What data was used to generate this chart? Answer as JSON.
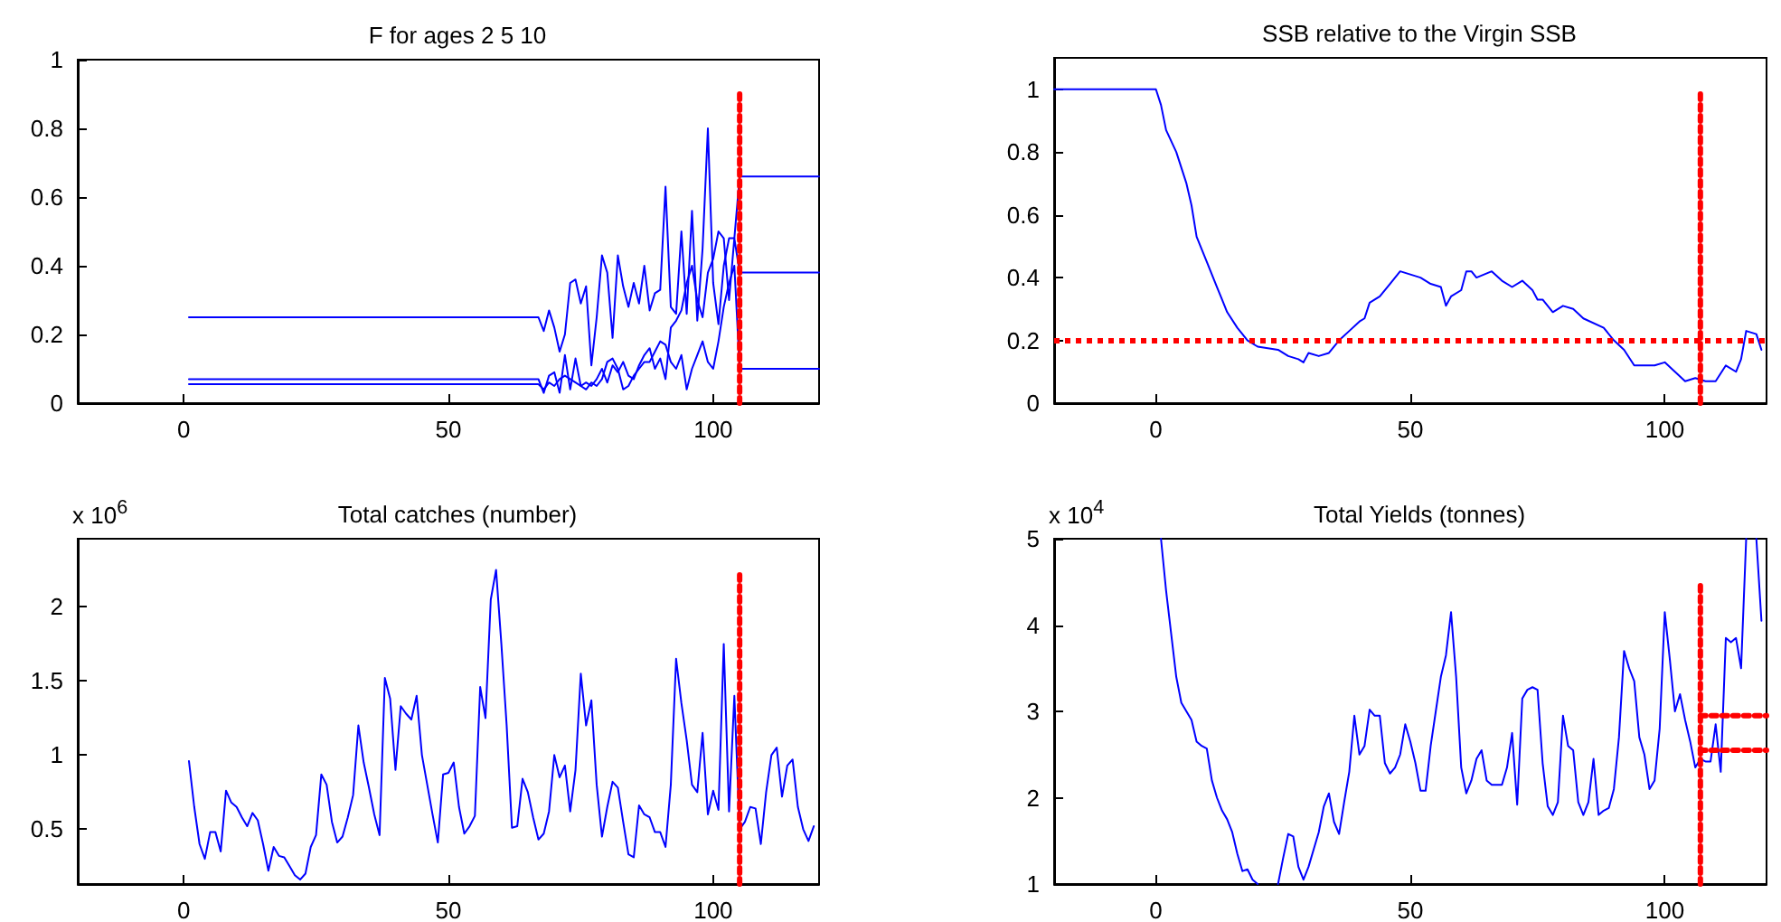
{
  "chart_data": [
    {
      "type": "line",
      "title": "F for ages 2 5 10",
      "xlim": [
        -20,
        120
      ],
      "xticks": [
        0,
        50,
        100
      ],
      "ylim": [
        0,
        1
      ],
      "yticks": [
        0,
        0.2,
        0.4,
        0.6,
        0.8,
        1
      ],
      "series": [
        {
          "color": "#0000ff",
          "x": [
            1,
            67,
            68,
            69,
            70,
            71,
            72,
            73,
            74,
            75,
            76,
            77,
            78,
            79,
            80,
            81,
            82,
            83,
            84,
            85,
            86,
            87,
            88,
            89,
            90,
            91,
            92,
            93,
            94,
            95,
            96,
            97,
            98,
            99,
            100,
            101,
            102,
            103,
            104,
            105,
            120
          ],
          "values": [
            0.25,
            0.25,
            0.21,
            0.27,
            0.22,
            0.15,
            0.2,
            0.35,
            0.36,
            0.29,
            0.34,
            0.11,
            0.25,
            0.43,
            0.38,
            0.19,
            0.43,
            0.34,
            0.28,
            0.35,
            0.29,
            0.4,
            0.27,
            0.32,
            0.33,
            0.63,
            0.28,
            0.26,
            0.5,
            0.26,
            0.56,
            0.24,
            0.45,
            0.8,
            0.35,
            0.23,
            0.4,
            0.48,
            0.48,
            0.66,
            0.66
          ]
        },
        {
          "color": "#0000ff",
          "x": [
            1,
            67,
            68,
            69,
            70,
            71,
            72,
            73,
            74,
            75,
            76,
            77,
            78,
            79,
            80,
            81,
            82,
            83,
            84,
            85,
            86,
            87,
            88,
            89,
            90,
            91,
            92,
            93,
            94,
            95,
            96,
            97,
            98,
            99,
            100,
            101,
            102,
            103,
            104,
            105,
            120
          ],
          "values": [
            0.07,
            0.07,
            0.03,
            0.08,
            0.09,
            0.03,
            0.14,
            0.04,
            0.13,
            0.05,
            0.06,
            0.05,
            0.07,
            0.1,
            0.06,
            0.11,
            0.09,
            0.12,
            0.08,
            0.07,
            0.11,
            0.14,
            0.16,
            0.1,
            0.13,
            0.07,
            0.22,
            0.24,
            0.27,
            0.35,
            0.4,
            0.3,
            0.25,
            0.38,
            0.42,
            0.5,
            0.48,
            0.3,
            0.48,
            0.38,
            0.38
          ]
        },
        {
          "color": "#0000ff",
          "x": [
            1,
            67,
            68,
            69,
            70,
            71,
            72,
            73,
            74,
            75,
            76,
            77,
            78,
            79,
            80,
            81,
            82,
            83,
            84,
            85,
            86,
            87,
            88,
            89,
            90,
            91,
            92,
            93,
            94,
            95,
            96,
            97,
            98,
            99,
            100,
            101,
            102,
            103,
            104,
            105,
            120
          ],
          "values": [
            0.055,
            0.055,
            0.04,
            0.06,
            0.05,
            0.07,
            0.08,
            0.07,
            0.06,
            0.05,
            0.04,
            0.06,
            0.05,
            0.07,
            0.12,
            0.13,
            0.1,
            0.04,
            0.05,
            0.08,
            0.1,
            0.12,
            0.12,
            0.15,
            0.18,
            0.17,
            0.12,
            0.1,
            0.14,
            0.04,
            0.1,
            0.14,
            0.18,
            0.12,
            0.1,
            0.18,
            0.28,
            0.35,
            0.4,
            0.1,
            0.1
          ]
        },
        {
          "color": "#ff0000",
          "line_style": "dotted",
          "x": [
            105,
            105
          ],
          "values": [
            0,
            0.9
          ]
        }
      ]
    },
    {
      "type": "line",
      "title": "SSB relative to the Virgin SSB",
      "xlim": [
        -20,
        120
      ],
      "xticks": [
        0,
        50,
        100
      ],
      "ylim": [
        0,
        1.1
      ],
      "yticks": [
        0,
        0.2,
        0.4,
        0.6,
        0.8,
        1
      ],
      "ref_lines": [
        {
          "axis": "y",
          "value": 0.2,
          "color": "#ff0000",
          "line_style": "dotted"
        }
      ],
      "series": [
        {
          "color": "#0000ff",
          "x": [
            -20,
            0,
            1,
            2,
            4,
            6,
            7,
            8,
            10,
            12,
            13,
            14,
            16,
            18,
            20,
            24,
            26,
            28,
            29,
            30,
            32,
            34,
            36,
            38,
            40,
            41,
            42,
            44,
            46,
            48,
            50,
            52,
            54,
            56,
            57,
            58,
            60,
            61,
            62,
            63,
            66,
            68,
            70,
            72,
            74,
            75,
            76,
            78,
            80,
            82,
            84,
            88,
            90,
            92,
            94,
            98,
            100,
            102,
            104,
            106,
            108,
            110,
            112,
            114,
            115,
            116,
            118,
            119
          ],
          "values": [
            1,
            1,
            0.95,
            0.87,
            0.8,
            0.7,
            0.63,
            0.53,
            0.45,
            0.37,
            0.33,
            0.29,
            0.24,
            0.2,
            0.18,
            0.17,
            0.15,
            0.14,
            0.13,
            0.16,
            0.15,
            0.16,
            0.2,
            0.23,
            0.26,
            0.27,
            0.32,
            0.34,
            0.38,
            0.42,
            0.41,
            0.4,
            0.38,
            0.37,
            0.31,
            0.34,
            0.36,
            0.42,
            0.42,
            0.4,
            0.42,
            0.39,
            0.37,
            0.39,
            0.36,
            0.33,
            0.33,
            0.29,
            0.31,
            0.3,
            0.27,
            0.24,
            0.2,
            0.17,
            0.12,
            0.12,
            0.13,
            0.1,
            0.07,
            0.08,
            0.07,
            0.07,
            0.12,
            0.1,
            0.14,
            0.23,
            0.22,
            0.17
          ]
        },
        {
          "color": "#ff0000",
          "line_style": "dotted",
          "x": [
            107,
            107
          ],
          "values": [
            0,
            1
          ]
        }
      ]
    },
    {
      "type": "line",
      "title": "Total catches (number)",
      "ylabel": "x 10$^{6}$",
      "xlim": [
        -20,
        120
      ],
      "xticks": [
        0,
        50,
        100
      ],
      "ylim": [
        0.13,
        2.46
      ],
      "yticks": [
        0.5,
        1,
        1.5,
        2
      ],
      "series": [
        {
          "color": "#0000ff",
          "x": [
            1,
            2,
            3,
            4,
            5,
            6,
            7,
            8,
            9,
            10,
            11,
            12,
            13,
            14,
            15,
            16,
            17,
            18,
            19,
            20,
            21,
            22,
            23,
            24,
            25,
            26,
            27,
            28,
            29,
            30,
            31,
            32,
            33,
            34,
            35,
            36,
            37,
            38,
            39,
            40,
            41,
            42,
            43,
            44,
            45,
            46,
            47,
            48,
            49,
            50,
            51,
            52,
            53,
            54,
            55,
            56,
            57,
            58,
            59,
            60,
            61,
            62,
            63,
            64,
            65,
            66,
            67,
            68,
            69,
            70,
            71,
            72,
            73,
            74,
            75,
            76,
            77,
            78,
            79,
            80,
            81,
            82,
            83,
            84,
            85,
            86,
            87,
            88,
            89,
            90,
            91,
            92,
            93,
            94,
            95,
            96,
            97,
            98,
            99,
            100,
            101,
            102,
            103,
            104,
            105,
            106,
            107,
            108,
            109,
            110,
            111,
            112,
            113,
            114,
            115,
            116,
            117,
            118,
            119
          ],
          "values": [
            0.96,
            0.65,
            0.4,
            0.3,
            0.48,
            0.48,
            0.35,
            0.76,
            0.68,
            0.65,
            0.58,
            0.52,
            0.61,
            0.56,
            0.4,
            0.22,
            0.38,
            0.32,
            0.31,
            0.25,
            0.19,
            0.16,
            0.2,
            0.38,
            0.46,
            0.87,
            0.8,
            0.55,
            0.41,
            0.45,
            0.58,
            0.73,
            1.2,
            0.95,
            0.78,
            0.6,
            0.46,
            1.52,
            1.38,
            0.9,
            1.33,
            1.28,
            1.24,
            1.4,
            1.0,
            0.8,
            0.6,
            0.41,
            0.87,
            0.88,
            0.95,
            0.65,
            0.47,
            0.52,
            0.59,
            1.46,
            1.25,
            2.05,
            2.25,
            1.75,
            1.2,
            0.51,
            0.52,
            0.84,
            0.75,
            0.58,
            0.43,
            0.47,
            0.62,
            1.0,
            0.85,
            0.93,
            0.62,
            0.9,
            1.55,
            1.2,
            1.37,
            0.8,
            0.45,
            0.65,
            0.82,
            0.78,
            0.55,
            0.33,
            0.31,
            0.66,
            0.6,
            0.58,
            0.48,
            0.48,
            0.38,
            0.8,
            1.65,
            1.35,
            1.1,
            0.8,
            0.75,
            1.15,
            0.6,
            0.76,
            0.63,
            1.75,
            0.62,
            1.4,
            0.5,
            0.55,
            0.65,
            0.64,
            0.4,
            0.75,
            1.0,
            1.05,
            0.72,
            0.93,
            0.97,
            0.65,
            0.5,
            0.42,
            0.52
          ]
        },
        {
          "color": "#ff0000",
          "line_style": "dotted",
          "x": [
            105,
            105
          ],
          "values": [
            0.13,
            2.22
          ]
        }
      ]
    },
    {
      "type": "line",
      "title": "Total Yields (tonnes)",
      "ylabel": "x 10$^{4}$",
      "xlim": [
        -20,
        120
      ],
      "xticks": [
        0,
        50,
        100
      ],
      "ylim": [
        1,
        5
      ],
      "yticks": [
        1,
        2,
        3,
        4,
        5
      ],
      "series": [
        {
          "color": "#0000ff",
          "x": [
            1,
            2,
            3,
            4,
            5,
            6,
            7,
            8,
            9,
            10,
            11,
            12,
            13,
            14,
            15,
            16,
            17,
            18,
            19,
            20,
            22,
            24,
            25,
            26,
            27,
            28,
            29,
            30,
            31,
            32,
            33,
            34,
            35,
            36,
            37,
            38,
            39,
            40,
            41,
            42,
            43,
            44,
            45,
            46,
            47,
            48,
            49,
            50,
            51,
            52,
            53,
            54,
            55,
            56,
            57,
            58,
            59,
            60,
            61,
            62,
            63,
            64,
            65,
            66,
            67,
            68,
            69,
            70,
            71,
            72,
            73,
            74,
            75,
            76,
            77,
            78,
            79,
            80,
            81,
            82,
            83,
            84,
            85,
            86,
            87,
            88,
            89,
            90,
            91,
            92,
            93,
            94,
            95,
            96,
            97,
            98,
            99,
            100,
            101,
            102,
            103,
            104,
            105,
            106,
            107,
            108,
            109,
            110,
            111,
            112,
            113,
            114,
            115,
            116,
            117,
            118,
            119
          ],
          "values": [
            5,
            4.4,
            3.9,
            3.4,
            3.1,
            3,
            2.9,
            2.65,
            2.6,
            2.57,
            2.2,
            2,
            1.85,
            1.75,
            1.6,
            1.35,
            1.15,
            1.17,
            1.05,
            1,
            null,
            1,
            1.3,
            1.58,
            1.55,
            1.2,
            1.05,
            1.2,
            1.4,
            1.6,
            1.9,
            2.05,
            1.72,
            1.58,
            1.95,
            2.3,
            2.95,
            2.5,
            2.6,
            3.02,
            2.95,
            2.95,
            2.4,
            2.28,
            2.35,
            2.5,
            2.85,
            2.65,
            2.4,
            2.08,
            2.08,
            2.6,
            3,
            3.4,
            3.65,
            4.15,
            3.4,
            2.35,
            2.05,
            2.2,
            2.45,
            2.55,
            2.2,
            2.15,
            2.15,
            2.15,
            2.35,
            2.75,
            1.92,
            3.15,
            3.25,
            3.28,
            3.25,
            2.4,
            1.9,
            1.8,
            1.95,
            2.95,
            2.6,
            2.55,
            1.95,
            1.8,
            1.95,
            2.45,
            1.8,
            1.85,
            1.88,
            2.1,
            2.7,
            3.7,
            3.5,
            3.35,
            2.7,
            2.5,
            2.1,
            2.2,
            2.8,
            4.15,
            3.6,
            3,
            3.2,
            2.9,
            2.65,
            2.35,
            2.45,
            2.42,
            2.42,
            2.85,
            2.3,
            3.85,
            3.8,
            3.85,
            3.5,
            5,
            null,
            5,
            4.05
          ]
        },
        {
          "color": "#ff0000",
          "line_style": "dotted",
          "x": [
            107,
            107
          ],
          "values": [
            1,
            4.5
          ]
        },
        {
          "color": "#ff0000",
          "line_style": "dotted",
          "x": [
            107,
            120
          ],
          "values": [
            2.95,
            2.95
          ]
        },
        {
          "color": "#ff0000",
          "line_style": "dotted",
          "x": [
            107,
            120
          ],
          "values": [
            2.55,
            2.55
          ]
        }
      ]
    }
  ]
}
